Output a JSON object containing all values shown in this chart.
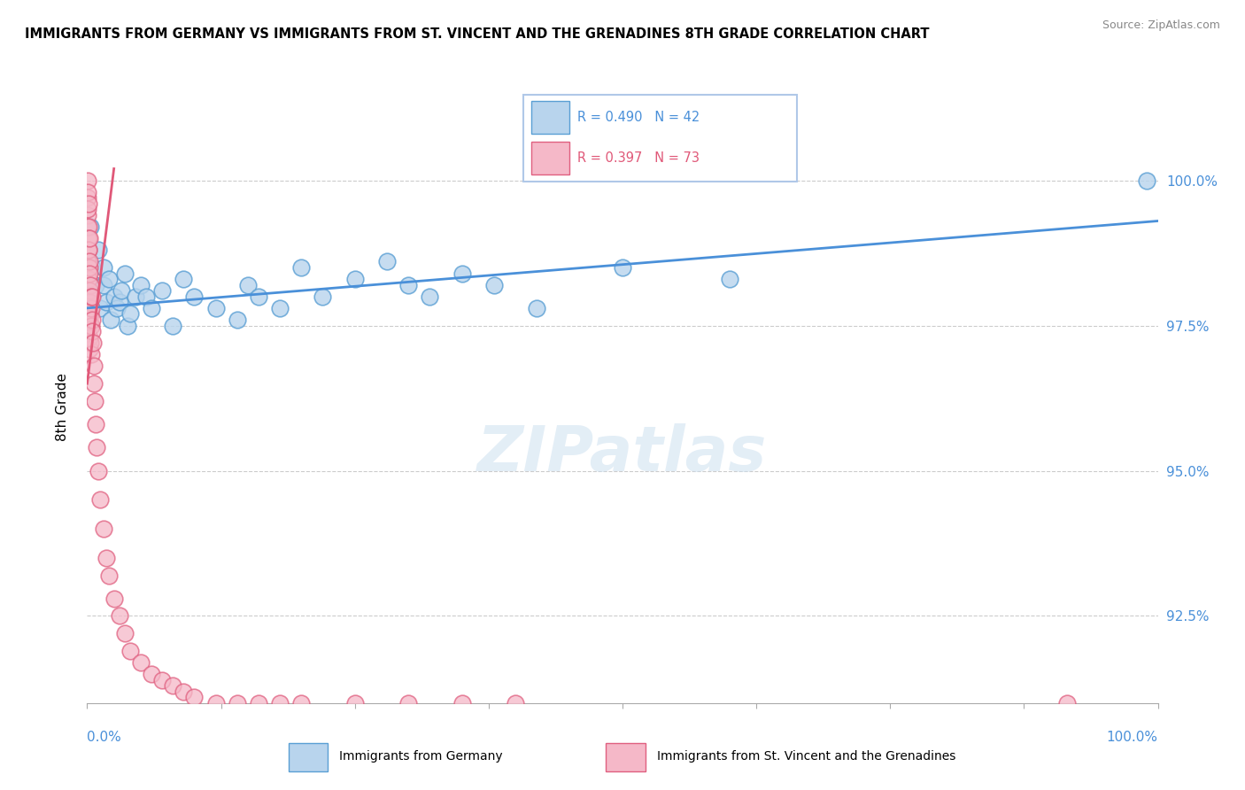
{
  "title": "IMMIGRANTS FROM GERMANY VS IMMIGRANTS FROM ST. VINCENT AND THE GRENADINES 8TH GRADE CORRELATION CHART",
  "source": "Source: ZipAtlas.com",
  "ylabel": "8th Grade",
  "legend_blue": "Immigrants from Germany",
  "legend_pink": "Immigrants from St. Vincent and the Grenadines",
  "R_blue": 0.49,
  "N_blue": 42,
  "R_pink": 0.397,
  "N_pink": 73,
  "blue_color": "#b8d4ed",
  "pink_color": "#f5b8c8",
  "blue_edge_color": "#5a9fd4",
  "pink_edge_color": "#e06080",
  "blue_line_color": "#4a90d9",
  "pink_line_color": "#e05878",
  "xlim": [
    0,
    100
  ],
  "ylim": [
    91.0,
    101.2
  ],
  "ytick_values": [
    92.5,
    95.0,
    97.5,
    100.0
  ],
  "blue_x": [
    0.3,
    0.5,
    0.8,
    1.0,
    1.2,
    1.5,
    1.5,
    1.8,
    2.0,
    2.2,
    2.5,
    2.8,
    3.0,
    3.2,
    3.5,
    3.8,
    4.0,
    4.5,
    5.0,
    5.5,
    6.0,
    7.0,
    8.0,
    9.0,
    10.0,
    12.0,
    14.0,
    15.0,
    16.0,
    18.0,
    20.0,
    22.0,
    25.0,
    28.0,
    30.0,
    32.0,
    35.0,
    38.0,
    42.0,
    50.0,
    60.0,
    99.0
  ],
  "blue_y": [
    99.2,
    98.5,
    98.2,
    98.8,
    97.8,
    98.5,
    98.2,
    97.9,
    98.3,
    97.6,
    98.0,
    97.8,
    97.9,
    98.1,
    98.4,
    97.5,
    97.7,
    98.0,
    98.2,
    98.0,
    97.8,
    98.1,
    97.5,
    98.3,
    98.0,
    97.8,
    97.6,
    98.2,
    98.0,
    97.8,
    98.5,
    98.0,
    98.3,
    98.6,
    98.2,
    98.0,
    98.4,
    98.2,
    97.8,
    98.5,
    98.3,
    100.0
  ],
  "pink_x": [
    0.05,
    0.05,
    0.05,
    0.05,
    0.05,
    0.08,
    0.08,
    0.08,
    0.08,
    0.08,
    0.1,
    0.1,
    0.1,
    0.1,
    0.1,
    0.1,
    0.12,
    0.12,
    0.12,
    0.15,
    0.15,
    0.15,
    0.18,
    0.18,
    0.2,
    0.2,
    0.2,
    0.2,
    0.2,
    0.25,
    0.25,
    0.25,
    0.3,
    0.3,
    0.3,
    0.35,
    0.4,
    0.4,
    0.4,
    0.45,
    0.5,
    0.5,
    0.55,
    0.6,
    0.65,
    0.7,
    0.8,
    0.9,
    1.0,
    1.2,
    1.5,
    1.8,
    2.0,
    2.5,
    3.0,
    3.5,
    4.0,
    5.0,
    6.0,
    7.0,
    8.0,
    9.0,
    10.0,
    12.0,
    14.0,
    16.0,
    18.0,
    20.0,
    25.0,
    30.0,
    35.0,
    40.0,
    91.5
  ],
  "pink_y": [
    100.0,
    99.7,
    99.4,
    99.0,
    98.6,
    99.8,
    99.5,
    99.2,
    98.8,
    98.4,
    99.6,
    99.2,
    98.8,
    98.4,
    97.9,
    97.5,
    99.0,
    98.5,
    98.0,
    98.8,
    98.3,
    97.7,
    98.5,
    97.9,
    99.0,
    98.6,
    98.1,
    97.6,
    97.1,
    98.4,
    97.9,
    97.3,
    98.2,
    97.7,
    97.2,
    97.8,
    98.0,
    97.5,
    97.0,
    97.6,
    98.0,
    97.4,
    97.2,
    96.8,
    96.5,
    96.2,
    95.8,
    95.4,
    95.0,
    94.5,
    94.0,
    93.5,
    93.2,
    92.8,
    92.5,
    92.2,
    91.9,
    91.7,
    91.5,
    91.4,
    91.3,
    91.2,
    91.1,
    91.0,
    91.0,
    91.0,
    91.0,
    91.0,
    91.0,
    91.0,
    91.0,
    91.0,
    91.0
  ]
}
